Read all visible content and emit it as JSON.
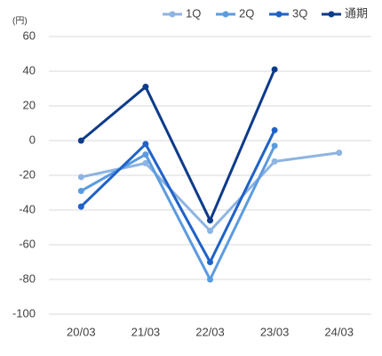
{
  "chart_data": {
    "type": "line",
    "unit": "(円)",
    "categories": [
      "20/03",
      "21/03",
      "22/03",
      "23/03",
      "24/03"
    ],
    "series": [
      {
        "name": "1Q",
        "color": "#8db4e2",
        "values": [
          -21,
          -13,
          -52,
          -12,
          -7
        ]
      },
      {
        "name": "2Q",
        "color": "#5b9be0",
        "values": [
          -29,
          -8,
          -80,
          -3,
          null
        ]
      },
      {
        "name": "3Q",
        "color": "#1f62c8",
        "values": [
          -38,
          -2,
          -70,
          6,
          null
        ]
      },
      {
        "name": "通期",
        "color": "#0d3b8a",
        "values": [
          0,
          31,
          -46,
          41,
          null
        ]
      }
    ],
    "ylim": [
      -100,
      60
    ],
    "yticks": [
      -100,
      -80,
      -60,
      -40,
      -20,
      0,
      20,
      40,
      60
    ],
    "grid": true,
    "legend": "top-right"
  }
}
